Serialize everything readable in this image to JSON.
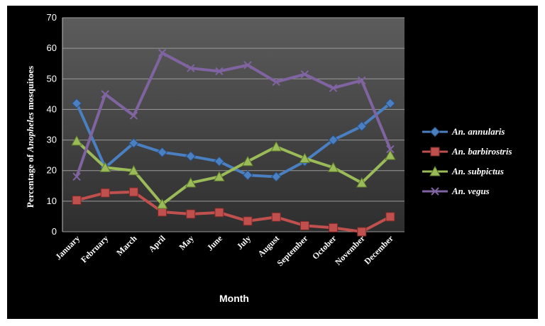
{
  "chart_data": {
    "type": "line",
    "categories": [
      "January",
      "February",
      "March",
      "April",
      "May",
      "June",
      "July",
      "August",
      "September",
      "October",
      "November",
      "December"
    ],
    "xlabel": "Month",
    "ylabel_prefix": "Percentage of ",
    "ylabel_italic": "Anopheles",
    "ylabel_suffix": " mosquitoes",
    "ylim": [
      0,
      70
    ],
    "yticks": [
      0,
      10,
      20,
      30,
      40,
      50,
      60,
      70
    ],
    "grid": true,
    "legend_position": "right",
    "series": [
      {
        "name": "An. annularis",
        "color": "#4a7fc1",
        "marker": "diamond",
        "values": [
          42,
          21,
          29,
          26,
          24.7,
          23,
          18.5,
          18,
          23,
          30,
          34.5,
          42
        ]
      },
      {
        "name": "An. barbirostris",
        "color": "#c0504d",
        "marker": "square",
        "values": [
          10.3,
          12.7,
          13,
          6.5,
          5.8,
          6.3,
          3.5,
          4.8,
          2,
          1.3,
          0,
          4.9
        ]
      },
      {
        "name": "An. subpictus",
        "color": "#9bbb59",
        "marker": "triangle",
        "values": [
          29.7,
          21,
          20,
          9,
          16,
          18,
          23,
          27.8,
          24,
          21,
          16,
          25
        ]
      },
      {
        "name": "An. vegus",
        "color": "#8064a2",
        "marker": "x",
        "values": [
          18,
          45,
          38,
          58.5,
          53.5,
          52.5,
          54.5,
          49,
          51.5,
          47,
          49.5,
          27
        ]
      }
    ]
  }
}
